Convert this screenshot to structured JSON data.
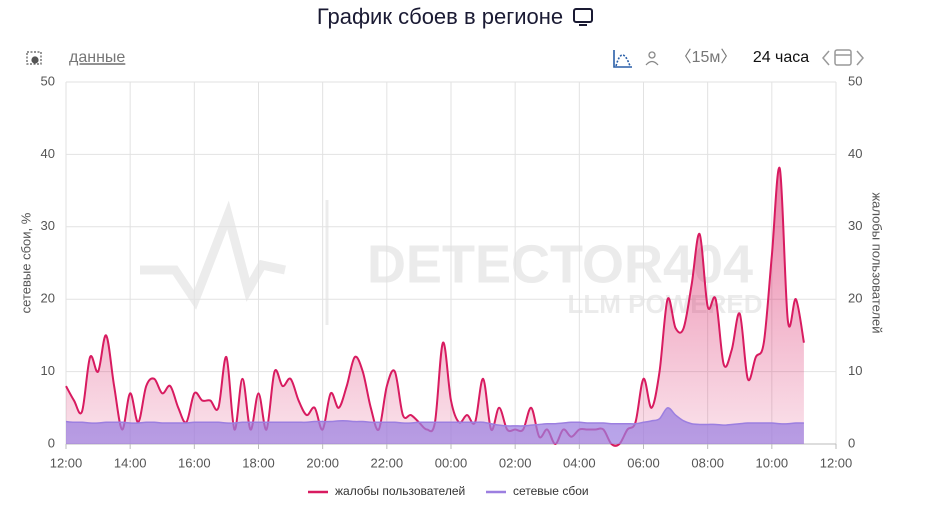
{
  "toolbar": {
    "data_link": "данные",
    "interval": "〈15м〉",
    "range": "24 часа"
  },
  "chart_data": {
    "type": "line",
    "title": "График сбоев в регионе",
    "watermark": [
      "DETECTOR404",
      "LLM POWERED"
    ],
    "ylabel": "сетевые сбои, %",
    "y2label": "жалобы пользователей",
    "x": [
      0,
      0.25,
      0.5,
      0.75,
      1,
      1.25,
      1.5,
      1.75,
      2,
      2.25,
      2.5,
      2.75,
      3,
      3.25,
      3.5,
      3.75,
      4,
      4.25,
      4.5,
      4.75,
      5,
      5.25,
      5.5,
      5.75,
      6,
      6.25,
      6.5,
      6.75,
      7,
      7.25,
      7.5,
      7.75,
      8,
      8.25,
      8.5,
      8.75,
      9,
      9.25,
      9.5,
      9.75,
      10,
      10.25,
      10.5,
      10.75,
      11,
      11.25,
      11.5,
      11.75,
      12,
      12.25,
      12.5,
      12.75,
      13,
      13.25,
      13.5,
      13.75,
      14,
      14.25,
      14.5,
      14.75,
      15,
      15.25,
      15.5,
      15.75,
      16,
      16.25,
      16.5,
      16.75,
      17,
      17.25,
      17.5,
      17.75,
      18,
      18.25,
      18.5,
      18.75,
      19,
      19.25,
      19.5,
      19.75,
      20,
      20.25,
      20.5,
      20.75,
      21,
      21.25,
      21.5,
      21.75,
      22,
      22.25,
      22.5,
      22.75,
      23
    ],
    "series": [
      {
        "name": "жалобы пользователей",
        "color": "#d81b60",
        "axis": "y2",
        "values": [
          8,
          6,
          4.5,
          12,
          10,
          15,
          8,
          2,
          7,
          3,
          8,
          9,
          7,
          8,
          5,
          3,
          7,
          6,
          6,
          5,
          12,
          2,
          9,
          2,
          7,
          2,
          10,
          8,
          9,
          6,
          4,
          5,
          2,
          7,
          5,
          8,
          12,
          10,
          5,
          2,
          8,
          10,
          4,
          4,
          3,
          2,
          3,
          14,
          6,
          3,
          4,
          3,
          9,
          2,
          5,
          2,
          2,
          2,
          5,
          1,
          2,
          0,
          2,
          1,
          2,
          2,
          2,
          2,
          0,
          0,
          2,
          3,
          9,
          5,
          10,
          20,
          16,
          16,
          22,
          29,
          19,
          20,
          11,
          13,
          18,
          9,
          12,
          14,
          26,
          38,
          17,
          20,
          14
        ]
      },
      {
        "name": "сетевые сбои",
        "color": "#9c7fe0",
        "values": [
          3.1,
          3,
          3,
          2.9,
          2.9,
          3,
          3,
          3,
          2.9,
          2.9,
          3,
          3,
          2.9,
          2.9,
          2.9,
          2.9,
          3,
          3,
          3,
          3,
          2.9,
          2.9,
          3,
          3,
          3,
          3,
          3,
          3,
          3,
          3,
          3,
          3.1,
          3.1,
          3.1,
          3.2,
          3.2,
          3.1,
          3.1,
          3,
          3,
          3,
          3,
          2.9,
          2.9,
          3,
          3,
          3,
          3,
          3,
          3,
          3,
          3,
          3,
          2.8,
          2.6,
          2.5,
          2.5,
          2.5,
          2.6,
          2.7,
          2.8,
          2.8,
          2.9,
          3,
          3,
          2.9,
          2.9,
          2.9,
          2.8,
          2.8,
          2.8,
          2.8,
          3,
          3.2,
          3.5,
          5,
          4,
          3.2,
          2.8,
          2.7,
          2.7,
          2.7,
          2.6,
          2.7,
          2.8,
          2.9,
          2.9,
          2.9,
          2.9,
          2.8,
          2.8,
          2.9,
          2.9
        ]
      }
    ],
    "xlim": [
      0,
      24
    ],
    "xticks": [
      {
        "value": 0,
        "label": "12:00"
      },
      {
        "value": 2,
        "label": "14:00"
      },
      {
        "value": 4,
        "label": "16:00"
      },
      {
        "value": 6,
        "label": "18:00"
      },
      {
        "value": 8,
        "label": "20:00"
      },
      {
        "value": 10,
        "label": "22:00"
      },
      {
        "value": 12,
        "label": "00:00"
      },
      {
        "value": 14,
        "label": "02:00"
      },
      {
        "value": 16,
        "label": "04:00"
      },
      {
        "value": 18,
        "label": "06:00"
      },
      {
        "value": 20,
        "label": "08:00"
      },
      {
        "value": 22,
        "label": "10:00"
      },
      {
        "value": 24,
        "label": "12:00"
      }
    ],
    "ylim": [
      0,
      50
    ],
    "yticks": [
      0,
      10,
      20,
      30,
      40,
      50
    ],
    "y2lim": [
      0,
      50
    ],
    "y2ticks": [
      0,
      10,
      20,
      30,
      40,
      50
    ],
    "grid": true,
    "legend": "bottom"
  }
}
